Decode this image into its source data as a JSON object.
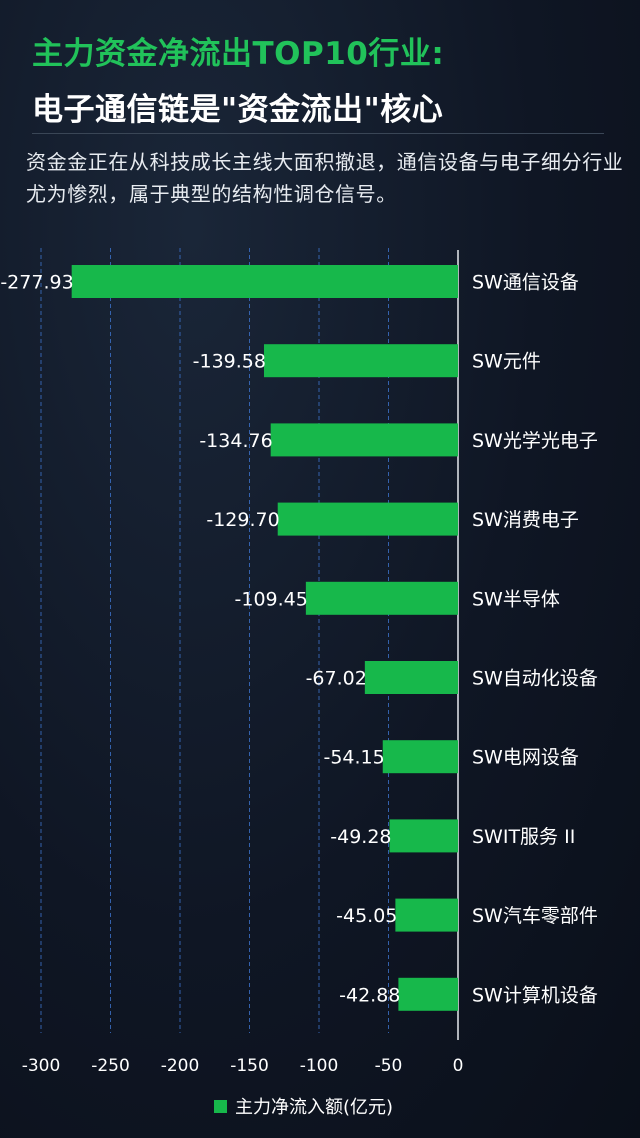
{
  "header": {
    "title_line1": "主力资金净流出TOP10行业:",
    "title_line2": "电子通信链是\"资金流出\"核心",
    "subtitle": "资金金正在从科技成长主线大面积撤退，通信设备与电子细分行业尤为惨烈，属于典型的结构性调仓信号。"
  },
  "colors": {
    "bar": "#17b84b",
    "title_accent": "#21c25a",
    "background": "#0f1624",
    "grid": "#3b6fc4"
  },
  "chart_data": {
    "type": "bar",
    "orientation": "horizontal",
    "categories": [
      "SW通信设备",
      "SW元件",
      "SW光学光电子",
      "SW消费电子",
      "SW半导体",
      "SW自动化设备",
      "SW电网设备",
      "SWIT服务 II",
      "SW汽车零部件",
      "SW计算机设备"
    ],
    "series": [
      {
        "name": "主力净流入额(亿元)",
        "values": [
          -277.93,
          -139.58,
          -134.76,
          -129.7,
          -109.45,
          -67.02,
          -54.15,
          -49.28,
          -45.05,
          -42.88
        ],
        "labels": [
          "-277.93",
          "-139.58",
          "-134.76",
          "-129.70",
          "-109.45",
          "-67.02",
          "-54.15",
          "-49.28",
          "-45.05",
          "-42.88"
        ]
      }
    ],
    "xlim": [
      -300,
      0
    ],
    "xticks": [
      -300,
      -250,
      -200,
      -150,
      -100,
      -50,
      0
    ],
    "grid": "vertical-dashed",
    "legend_position": "bottom-center"
  }
}
